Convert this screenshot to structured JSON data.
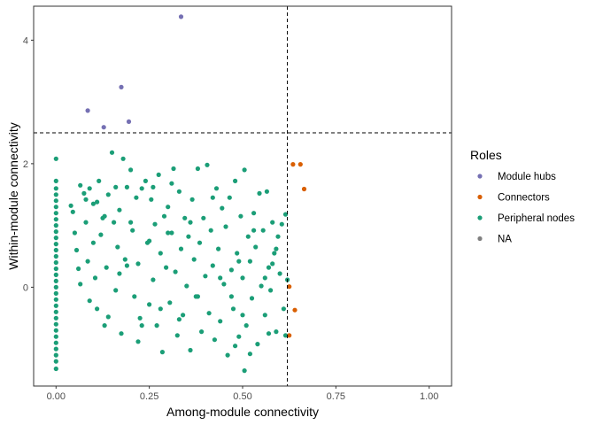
{
  "chart_data": {
    "type": "scatter",
    "xlabel": "Among-module connectivity",
    "ylabel": "Within-module connectivity",
    "xlim": [
      -0.06,
      1.06
    ],
    "ylim": [
      -1.6,
      4.55
    ],
    "x_ticks": [
      0,
      0.25,
      0.5,
      0.75,
      1
    ],
    "x_tick_labels": [
      "0.00",
      "0.25",
      "0.50",
      "0.75",
      "1.00"
    ],
    "y_ticks": [
      0,
      2,
      4
    ],
    "y_tick_labels": [
      "0",
      "2",
      "4"
    ],
    "grid": false,
    "legend_position": "right",
    "reference_lines": {
      "vertical_x": 0.62,
      "horizontal_y": 2.5,
      "style": "dashed"
    },
    "legend": {
      "title": "Roles",
      "items": [
        {
          "label": "Module hubs",
          "color": "#7570B3"
        },
        {
          "label": "Connectors",
          "color": "#D95F02"
        },
        {
          "label": "Peripheral nodes",
          "color": "#1B9E77"
        },
        {
          "label": "NA",
          "color": "#7F7F7F"
        }
      ]
    },
    "series": [
      {
        "name": "Module hubs",
        "color": "#7570B3",
        "points": [
          [
            0.335,
            4.38
          ],
          [
            0.175,
            3.24
          ],
          [
            0.085,
            2.86
          ],
          [
            0.195,
            2.68
          ],
          [
            0.128,
            2.59
          ]
        ]
      },
      {
        "name": "Connectors",
        "color": "#D95F02",
        "points": [
          [
            0.635,
            1.99
          ],
          [
            0.655,
            1.99
          ],
          [
            0.665,
            1.59
          ],
          [
            0.625,
            0.01
          ],
          [
            0.64,
            -0.37
          ],
          [
            0.625,
            -0.78
          ]
        ]
      },
      {
        "name": "Peripheral nodes",
        "color": "#1B9E77",
        "points": [
          [
            0,
            2.08
          ],
          [
            0,
            1.72
          ],
          [
            0,
            1.6
          ],
          [
            0,
            1.5
          ],
          [
            0,
            1.4
          ],
          [
            0,
            1.3
          ],
          [
            0,
            1.2
          ],
          [
            0,
            1.1
          ],
          [
            0,
            1.0
          ],
          [
            0,
            0.9
          ],
          [
            0,
            0.8
          ],
          [
            0,
            0.7
          ],
          [
            0,
            0.6
          ],
          [
            0,
            0.5
          ],
          [
            0,
            0.4
          ],
          [
            0,
            0.3
          ],
          [
            0,
            0.2
          ],
          [
            0,
            0.1
          ],
          [
            0,
            0.0
          ],
          [
            0,
            -0.1
          ],
          [
            0,
            -0.2
          ],
          [
            0,
            -0.3
          ],
          [
            0,
            -0.4
          ],
          [
            0,
            -0.5
          ],
          [
            0,
            -0.6
          ],
          [
            0,
            -0.7
          ],
          [
            0,
            -0.8
          ],
          [
            0,
            -0.9
          ],
          [
            0,
            -1.0
          ],
          [
            0,
            -1.1
          ],
          [
            0,
            -1.2
          ],
          [
            0,
            -1.32
          ],
          [
            0.04,
            1.32
          ],
          [
            0.045,
            1.22
          ],
          [
            0.05,
            0.88
          ],
          [
            0.055,
            0.6
          ],
          [
            0.06,
            0.3
          ],
          [
            0.065,
            0.05
          ],
          [
            0.065,
            1.65
          ],
          [
            0.075,
            1.52
          ],
          [
            0.08,
            1.05
          ],
          [
            0.085,
            0.42
          ],
          [
            0.09,
            -0.22
          ],
          [
            0.09,
            1.6
          ],
          [
            0.1,
            1.35
          ],
          [
            0.105,
            0.15
          ],
          [
            0.11,
            -0.35
          ],
          [
            0.115,
            1.72
          ],
          [
            0.12,
            0.85
          ],
          [
            0.125,
            1.12
          ],
          [
            0.13,
            -0.62
          ],
          [
            0.135,
            0.32
          ],
          [
            0.14,
            1.5
          ],
          [
            0.15,
            2.18
          ],
          [
            0.155,
            1.05
          ],
          [
            0.16,
            -0.05
          ],
          [
            0.165,
            0.65
          ],
          [
            0.17,
            1.25
          ],
          [
            0.175,
            -0.75
          ],
          [
            0.18,
            2.08
          ],
          [
            0.185,
            0.45
          ],
          [
            0.19,
            1.62
          ],
          [
            0.2,
            1.9
          ],
          [
            0.205,
            0.92
          ],
          [
            0.21,
            -0.15
          ],
          [
            0.215,
            1.45
          ],
          [
            0.22,
            0.38
          ],
          [
            0.225,
            -0.5
          ],
          [
            0.23,
            1.6
          ],
          [
            0.24,
            1.72
          ],
          [
            0.245,
            0.72
          ],
          [
            0.25,
            -0.28
          ],
          [
            0.255,
            1.42
          ],
          [
            0.26,
            0.12
          ],
          [
            0.265,
            1.02
          ],
          [
            0.27,
            -0.62
          ],
          [
            0.275,
            1.82
          ],
          [
            0.28,
            0.55
          ],
          [
            0.285,
            -1.05
          ],
          [
            0.29,
            1.15
          ],
          [
            0.295,
            0.32
          ],
          [
            0.3,
            1.3
          ],
          [
            0.305,
            -0.25
          ],
          [
            0.31,
            0.88
          ],
          [
            0.315,
            1.92
          ],
          [
            0.32,
            0.25
          ],
          [
            0.325,
            -0.78
          ],
          [
            0.33,
            1.55
          ],
          [
            0.335,
            0.62
          ],
          [
            0.34,
            -0.45
          ],
          [
            0.345,
            1.12
          ],
          [
            0.35,
            0.02
          ],
          [
            0.355,
            0.82
          ],
          [
            0.36,
            -1.02
          ],
          [
            0.365,
            1.42
          ],
          [
            0.37,
            0.45
          ],
          [
            0.375,
            -0.15
          ],
          [
            0.38,
            1.92
          ],
          [
            0.385,
            0.72
          ],
          [
            0.39,
            -0.72
          ],
          [
            0.395,
            1.12
          ],
          [
            0.4,
            0.18
          ],
          [
            0.405,
            1.98
          ],
          [
            0.41,
            -0.42
          ],
          [
            0.415,
            0.92
          ],
          [
            0.42,
            0.35
          ],
          [
            0.425,
            -0.85
          ],
          [
            0.43,
            1.6
          ],
          [
            0.435,
            0.62
          ],
          [
            0.44,
            -0.55
          ],
          [
            0.445,
            1.28
          ],
          [
            0.45,
            0.05
          ],
          [
            0.455,
            0.98
          ],
          [
            0.46,
            -1.1
          ],
          [
            0.465,
            1.45
          ],
          [
            0.47,
            0.28
          ],
          [
            0.475,
            -0.35
          ],
          [
            0.48,
            1.72
          ],
          [
            0.485,
            0.55
          ],
          [
            0.49,
            -0.8
          ],
          [
            0.495,
            1.15
          ],
          [
            0.5,
            0.15
          ],
          [
            0.505,
            1.9
          ],
          [
            0.505,
            -1.35
          ],
          [
            0.51,
            -0.62
          ],
          [
            0.515,
            0.82
          ],
          [
            0.52,
            0.42
          ],
          [
            0.525,
            -0.18
          ],
          [
            0.53,
            1.2
          ],
          [
            0.535,
            0.65
          ],
          [
            0.54,
            -0.92
          ],
          [
            0.545,
            1.52
          ],
          [
            0.55,
            0.02
          ],
          [
            0.555,
            0.92
          ],
          [
            0.56,
            -0.45
          ],
          [
            0.565,
            1.55
          ],
          [
            0.57,
            0.32
          ],
          [
            0.575,
            -0.05
          ],
          [
            0.58,
            1.05
          ],
          [
            0.585,
            0.55
          ],
          [
            0.59,
            -0.72
          ],
          [
            0.595,
            0.82
          ],
          [
            0.6,
            0.22
          ],
          [
            0.605,
            1.02
          ],
          [
            0.61,
            -0.35
          ],
          [
            0.615,
            1.18
          ],
          [
            0.62,
            0.12
          ],
          [
            0.08,
            1.42
          ],
          [
            0.1,
            0.72
          ],
          [
            0.11,
            1.38
          ],
          [
            0.13,
            1.15
          ],
          [
            0.14,
            -0.48
          ],
          [
            0.16,
            1.62
          ],
          [
            0.17,
            0.22
          ],
          [
            0.19,
            0.35
          ],
          [
            0.2,
            1.05
          ],
          [
            0.22,
            -0.88
          ],
          [
            0.23,
            -0.62
          ],
          [
            0.25,
            0.75
          ],
          [
            0.26,
            1.62
          ],
          [
            0.28,
            -0.35
          ],
          [
            0.3,
            0.88
          ],
          [
            0.31,
            1.68
          ],
          [
            0.33,
            -0.52
          ],
          [
            0.36,
            1.05
          ],
          [
            0.38,
            -0.15
          ],
          [
            0.42,
            1.45
          ],
          [
            0.44,
            0.15
          ],
          [
            0.47,
            -0.15
          ],
          [
            0.48,
            -0.95
          ],
          [
            0.49,
            0.42
          ],
          [
            0.5,
            -0.45
          ],
          [
            0.52,
            -1.08
          ],
          [
            0.53,
            0.92
          ],
          [
            0.56,
            0.15
          ],
          [
            0.57,
            -0.75
          ],
          [
            0.58,
            0.38
          ],
          [
            0.59,
            0.62
          ],
          [
            0.615,
            -0.78
          ]
        ]
      }
    ]
  }
}
